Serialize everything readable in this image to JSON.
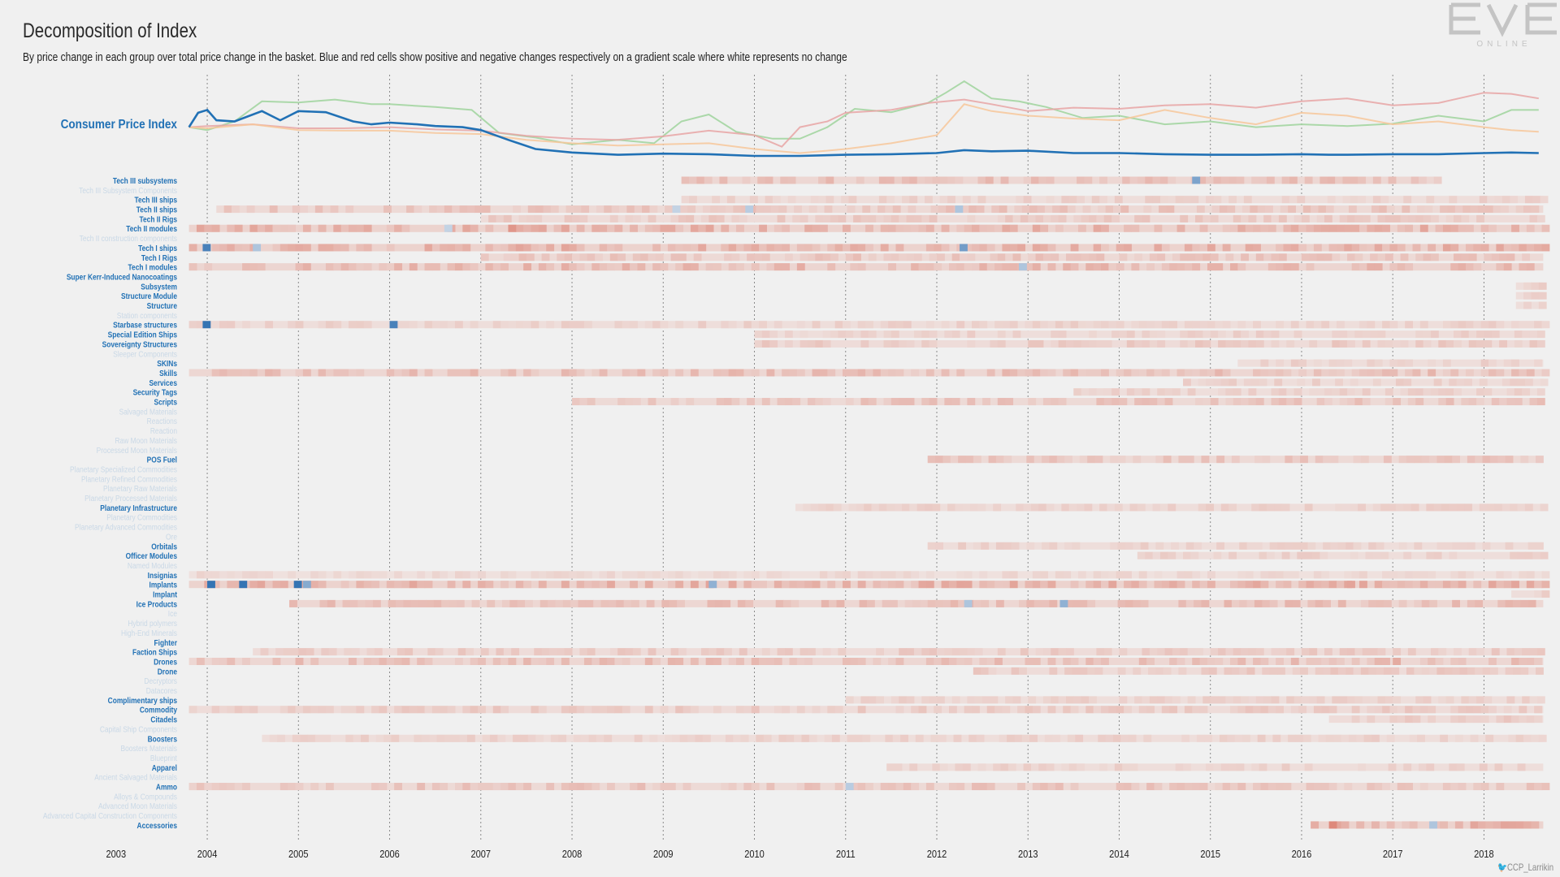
{
  "title": "Decomposition of Index",
  "subtitle": "By price change in each group over total price change in the basket. Blue and red cells show positive and negative changes respectively on a gradient scale where white represents no change",
  "logo": {
    "text": "EVE",
    "subtext": "ONLINE"
  },
  "credit": "CCP_Larrikin",
  "colors": {
    "cpi": "#2171b5",
    "label_active": "#2171b5",
    "label_inactive": "#c9d8e6",
    "positive": "#2166ac",
    "negative": "#d6604d",
    "series_green": "#9fd39c",
    "series_red": "#e8a5a5",
    "series_orange": "#f7c79a"
  },
  "chart_data": [
    {
      "type": "line",
      "ylabel": "Consumer Price Index",
      "x_range": [
        "2003-11",
        "2018-08"
      ],
      "x_ticks": [
        "2003",
        "2004",
        "2005",
        "2006",
        "2007",
        "2008",
        "2009",
        "2010",
        "2011",
        "2012",
        "2013",
        "2014",
        "2015",
        "2016",
        "2017",
        "2018"
      ],
      "series": [
        {
          "name": "Consumer Price Index",
          "color": "#2171b5",
          "x": [
            2003.8,
            2003.9,
            2004.0,
            2004.1,
            2004.3,
            2004.6,
            2004.8,
            2005.0,
            2005.3,
            2005.6,
            2005.8,
            2006.0,
            2006.3,
            2006.5,
            2006.8,
            2007.0,
            2007.3,
            2007.6,
            2008.0,
            2008.5,
            2009.0,
            2009.5,
            2010.0,
            2010.5,
            2011.0,
            2011.5,
            2012.0,
            2012.3,
            2012.6,
            2013.0,
            2013.5,
            2014.0,
            2014.5,
            2015.0,
            2015.5,
            2016.0,
            2016.3,
            2016.5,
            2017.0,
            2017.5,
            2018.0,
            2018.3,
            2018.6
          ],
          "y": [
            0.5,
            0.75,
            0.8,
            0.62,
            0.6,
            0.78,
            0.62,
            0.78,
            0.76,
            0.6,
            0.55,
            0.58,
            0.55,
            0.52,
            0.5,
            0.45,
            0.28,
            0.12,
            0.06,
            0.02,
            0.04,
            0.03,
            0.0,
            0.0,
            0.02,
            0.03,
            0.05,
            0.1,
            0.08,
            0.09,
            0.05,
            0.05,
            0.03,
            0.02,
            0.02,
            0.03,
            0.02,
            0.02,
            0.03,
            0.03,
            0.05,
            0.06,
            0.05
          ]
        },
        {
          "name": "",
          "color": "#9fd39c",
          "x": [
            2003.8,
            2004.0,
            2004.3,
            2004.6,
            2005.0,
            2005.4,
            2005.8,
            2006.0,
            2006.5,
            2006.9,
            2007.2,
            2007.6,
            2008.0,
            2008.5,
            2008.9,
            2009.2,
            2009.5,
            2009.8,
            2010.2,
            2010.5,
            2010.8,
            2011.1,
            2011.5,
            2011.9,
            2012.1,
            2012.3,
            2012.6,
            2012.9,
            2013.2,
            2013.6,
            2014.0,
            2014.5,
            2015.0,
            2015.5,
            2016.0,
            2016.5,
            2017.0,
            2017.5,
            2018.0,
            2018.3,
            2018.6
          ],
          "y": [
            0.5,
            0.45,
            0.6,
            0.95,
            0.93,
            0.98,
            0.9,
            0.9,
            0.85,
            0.8,
            0.4,
            0.32,
            0.2,
            0.28,
            0.22,
            0.6,
            0.72,
            0.42,
            0.3,
            0.3,
            0.5,
            0.82,
            0.76,
            0.92,
            1.1,
            1.3,
            1.0,
            0.95,
            0.85,
            0.66,
            0.7,
            0.55,
            0.6,
            0.5,
            0.55,
            0.52,
            0.56,
            0.7,
            0.6,
            0.8,
            0.8
          ]
        },
        {
          "name": "",
          "color": "#e8a5a5",
          "x": [
            2003.8,
            2004.0,
            2004.5,
            2005.0,
            2005.5,
            2006.0,
            2006.5,
            2007.0,
            2007.5,
            2008.0,
            2008.5,
            2009.0,
            2009.5,
            2010.0,
            2010.3,
            2010.5,
            2010.8,
            2011.0,
            2011.5,
            2011.9,
            2012.3,
            2012.6,
            2013.0,
            2013.5,
            2014.0,
            2014.5,
            2015.0,
            2015.5,
            2016.0,
            2016.5,
            2017.0,
            2017.5,
            2018.0,
            2018.3,
            2018.6
          ],
          "y": [
            0.5,
            0.52,
            0.55,
            0.48,
            0.48,
            0.5,
            0.46,
            0.44,
            0.35,
            0.3,
            0.28,
            0.34,
            0.44,
            0.36,
            0.16,
            0.5,
            0.6,
            0.75,
            0.8,
            0.92,
            0.98,
            0.9,
            0.78,
            0.84,
            0.82,
            0.88,
            0.9,
            0.84,
            0.95,
            1.0,
            0.88,
            0.92,
            1.1,
            1.08,
            1.0
          ]
        },
        {
          "name": "",
          "color": "#f7c79a",
          "x": [
            2003.8,
            2004.0,
            2004.5,
            2005.0,
            2005.5,
            2006.0,
            2006.5,
            2007.0,
            2007.5,
            2008.0,
            2008.5,
            2009.0,
            2009.5,
            2010.0,
            2010.5,
            2011.0,
            2011.5,
            2012.0,
            2012.3,
            2012.6,
            2013.0,
            2013.5,
            2014.0,
            2014.5,
            2015.0,
            2015.5,
            2016.0,
            2016.5,
            2017.0,
            2017.5,
            2018.0,
            2018.3,
            2018.6
          ],
          "y": [
            0.5,
            0.48,
            0.55,
            0.45,
            0.44,
            0.44,
            0.4,
            0.38,
            0.28,
            0.22,
            0.18,
            0.2,
            0.22,
            0.12,
            0.05,
            0.12,
            0.22,
            0.36,
            0.9,
            0.78,
            0.7,
            0.65,
            0.62,
            0.8,
            0.66,
            0.55,
            0.75,
            0.7,
            0.55,
            0.6,
            0.5,
            0.45,
            0.42
          ]
        }
      ]
    },
    {
      "type": "heatmap",
      "x_range": [
        "2003-11",
        "2018-08"
      ],
      "x_ticks": [
        "2003",
        "2004",
        "2005",
        "2006",
        "2007",
        "2008",
        "2009",
        "2010",
        "2011",
        "2012",
        "2013",
        "2014",
        "2015",
        "2016",
        "2017",
        "2018"
      ],
      "rows": [
        {
          "label": "Tech III subsystems",
          "active": true,
          "start": 2009.2,
          "end": 2017.5,
          "intensity": 0.35,
          "highlights": [
            {
              "x": 2014.8,
              "v": 0.55
            }
          ]
        },
        {
          "label": "Tech III Subsystem Components",
          "active": false
        },
        {
          "label": "Tech III ships",
          "active": true,
          "start": 2009.2,
          "end": 2018.65,
          "intensity": 0.2,
          "highlights": []
        },
        {
          "label": "Tech II ships",
          "active": true,
          "start": 2004.1,
          "end": 2018.65,
          "intensity": 0.3,
          "highlights": [
            {
              "x": 2009.1,
              "v": 0.2
            },
            {
              "x": 2009.9,
              "v": 0.25
            },
            {
              "x": 2012.2,
              "v": 0.3
            }
          ]
        },
        {
          "label": "Tech II Rigs",
          "active": true,
          "start": 2007.0,
          "end": 2018.65,
          "intensity": 0.25,
          "highlights": []
        },
        {
          "label": "Tech II modules",
          "active": true,
          "start": 2003.8,
          "end": 2018.65,
          "intensity": 0.45,
          "highlights": [
            {
              "x": 2006.6,
              "v": 0.2
            },
            {
              "x": 2007.3,
              "v": -0.6
            }
          ]
        },
        {
          "label": "Tech II construction components",
          "active": false
        },
        {
          "label": "Tech I ships",
          "active": true,
          "start": 2003.8,
          "end": 2018.65,
          "intensity": 0.45,
          "highlights": [
            {
              "x": 2003.95,
              "v": 0.8
            },
            {
              "x": 2004.5,
              "v": 0.3
            },
            {
              "x": 2012.25,
              "v": 0.6
            }
          ]
        },
        {
          "label": "Tech I Rigs",
          "active": true,
          "start": 2007.0,
          "end": 2018.65,
          "intensity": 0.3,
          "highlights": []
        },
        {
          "label": "Tech I modules",
          "active": true,
          "start": 2003.8,
          "end": 2018.65,
          "intensity": 0.4,
          "highlights": [
            {
              "x": 2012.9,
              "v": 0.3
            }
          ]
        },
        {
          "label": "Super Kerr-Induced Nanocoatings",
          "active": true,
          "start": 0,
          "end": 0,
          "intensity": 0,
          "highlights": []
        },
        {
          "label": "Subsystem",
          "active": true,
          "start": 2018.35,
          "end": 2018.65,
          "intensity": 0.2,
          "highlights": []
        },
        {
          "label": "Structure Module",
          "active": true,
          "start": 2018.35,
          "end": 2018.65,
          "intensity": 0.2,
          "highlights": []
        },
        {
          "label": "Structure",
          "active": true,
          "start": 2018.35,
          "end": 2018.65,
          "intensity": 0.2,
          "highlights": []
        },
        {
          "label": "Station components",
          "active": false
        },
        {
          "label": "Starbase structures",
          "active": true,
          "start": 2003.8,
          "end": 2018.65,
          "intensity": 0.2,
          "highlights": [
            {
              "x": 2003.95,
              "v": 0.9
            },
            {
              "x": 2006.0,
              "v": 0.8
            }
          ]
        },
        {
          "label": "Special Edition Ships",
          "active": true,
          "start": 2010.0,
          "end": 2018.65,
          "intensity": 0.2,
          "highlights": []
        },
        {
          "label": "Sovereignty Structures",
          "active": true,
          "start": 2010.0,
          "end": 2018.65,
          "intensity": 0.25,
          "highlights": []
        },
        {
          "label": "Sleeper Components",
          "active": false
        },
        {
          "label": "SKINs",
          "active": true,
          "start": 2015.3,
          "end": 2018.65,
          "intensity": 0.2,
          "highlights": []
        },
        {
          "label": "Skills",
          "active": true,
          "start": 2003.8,
          "end": 2018.65,
          "intensity": 0.35,
          "highlights": []
        },
        {
          "label": "Services",
          "active": true,
          "start": 2014.7,
          "end": 2018.65,
          "intensity": 0.2,
          "highlights": []
        },
        {
          "label": "Security Tags",
          "active": true,
          "start": 2013.5,
          "end": 2018.65,
          "intensity": 0.2,
          "highlights": []
        },
        {
          "label": "Scripts",
          "active": true,
          "start": 2008.0,
          "end": 2018.65,
          "intensity": 0.3,
          "highlights": []
        },
        {
          "label": "Salvaged Materials",
          "active": false
        },
        {
          "label": "Reactions",
          "active": false
        },
        {
          "label": "Reaction",
          "active": false
        },
        {
          "label": "Raw Moon Materials",
          "active": false
        },
        {
          "label": "Processed Moon Materials",
          "active": false
        },
        {
          "label": "POS Fuel",
          "active": true,
          "start": 2011.9,
          "end": 2018.65,
          "intensity": 0.3,
          "highlights": []
        },
        {
          "label": "Planetary Specialized Commodities",
          "active": false
        },
        {
          "label": "Planetary Refined Commodities",
          "active": false
        },
        {
          "label": "Planetary Raw Materials",
          "active": false
        },
        {
          "label": "Planetary Processed Materials",
          "active": false
        },
        {
          "label": "Planetary Infrastructure",
          "active": true,
          "start": 2010.45,
          "end": 2018.65,
          "intensity": 0.2,
          "highlights": []
        },
        {
          "label": "Planetary Commodities",
          "active": false
        },
        {
          "label": "Planetary Advanced Commodities",
          "active": false
        },
        {
          "label": "Ore",
          "active": false
        },
        {
          "label": "Orbitals",
          "active": true,
          "start": 2011.9,
          "end": 2018.65,
          "intensity": 0.2,
          "highlights": []
        },
        {
          "label": "Officer Modules",
          "active": true,
          "start": 2014.2,
          "end": 2018.65,
          "intensity": 0.2,
          "highlights": []
        },
        {
          "label": "Named Modules",
          "active": false
        },
        {
          "label": "Insignias",
          "active": true,
          "start": 2003.8,
          "end": 2018.65,
          "intensity": 0.15,
          "highlights": []
        },
        {
          "label": "Implants",
          "active": true,
          "start": 2003.8,
          "end": 2018.65,
          "intensity": 0.45,
          "highlights": [
            {
              "x": 2004.0,
              "v": 0.9
            },
            {
              "x": 2004.35,
              "v": 0.9
            },
            {
              "x": 2004.95,
              "v": 0.9
            },
            {
              "x": 2005.05,
              "v": 0.5
            },
            {
              "x": 2009.5,
              "v": 0.45
            },
            {
              "x": 2016.5,
              "v": -0.5
            }
          ]
        },
        {
          "label": "Implant",
          "active": true,
          "start": 2018.3,
          "end": 2018.65,
          "intensity": 0.2,
          "highlights": []
        },
        {
          "label": "Ice Products",
          "active": true,
          "start": 2004.9,
          "end": 2018.65,
          "intensity": 0.35,
          "highlights": [
            {
              "x": 2013.35,
              "v": 0.45
            },
            {
              "x": 2012.3,
              "v": 0.3
            }
          ]
        },
        {
          "label": "Ice",
          "active": false
        },
        {
          "label": "Hybrid polymers",
          "active": false
        },
        {
          "label": "High-End Minerals",
          "active": false
        },
        {
          "label": "Fighter",
          "active": true,
          "start": 0,
          "end": 0,
          "intensity": 0,
          "highlights": []
        },
        {
          "label": "Faction Ships",
          "active": true,
          "start": 2004.5,
          "end": 2018.65,
          "intensity": 0.25,
          "highlights": []
        },
        {
          "label": "Drones",
          "active": true,
          "start": 2003.8,
          "end": 2018.65,
          "intensity": 0.35,
          "highlights": [
            {
              "x": 2017.0,
              "v": -0.45
            }
          ]
        },
        {
          "label": "Drone",
          "active": true,
          "start": 2012.4,
          "end": 2018.65,
          "intensity": 0.25,
          "highlights": []
        },
        {
          "label": "Decryptors",
          "active": false
        },
        {
          "label": "Datacores",
          "active": false
        },
        {
          "label": "Complimentary ships",
          "active": true,
          "start": 2011.0,
          "end": 2018.65,
          "intensity": 0.2,
          "highlights": []
        },
        {
          "label": "Commodity",
          "active": true,
          "start": 2003.8,
          "end": 2018.65,
          "intensity": 0.25,
          "highlights": []
        },
        {
          "label": "Citadels",
          "active": true,
          "start": 2016.3,
          "end": 2018.65,
          "intensity": 0.25,
          "highlights": []
        },
        {
          "label": "Capital Ship Components",
          "active": false
        },
        {
          "label": "Boosters",
          "active": true,
          "start": 2004.6,
          "end": 2018.65,
          "intensity": 0.2,
          "highlights": []
        },
        {
          "label": "Boosters Materials",
          "active": false
        },
        {
          "label": "Blueprint",
          "active": false
        },
        {
          "label": "Apparel",
          "active": true,
          "start": 2011.45,
          "end": 2018.65,
          "intensity": 0.2,
          "highlights": []
        },
        {
          "label": "Ancient Salvaged Materials",
          "active": false
        },
        {
          "label": "Ammo",
          "active": true,
          "start": 2003.8,
          "end": 2018.65,
          "intensity": 0.3,
          "highlights": [
            {
              "x": 2011.0,
              "v": 0.25
            }
          ]
        },
        {
          "label": "Alloys & Compounds",
          "active": false
        },
        {
          "label": "Advanced Moon Materials",
          "active": false
        },
        {
          "label": "Advanced Capital Construction Components",
          "active": false
        },
        {
          "label": "Accessories",
          "active": true,
          "start": 2016.1,
          "end": 2018.65,
          "intensity": 0.45,
          "highlights": [
            {
              "x": 2016.3,
              "v": -0.7
            },
            {
              "x": 2017.4,
              "v": 0.3
            }
          ]
        }
      ]
    }
  ]
}
